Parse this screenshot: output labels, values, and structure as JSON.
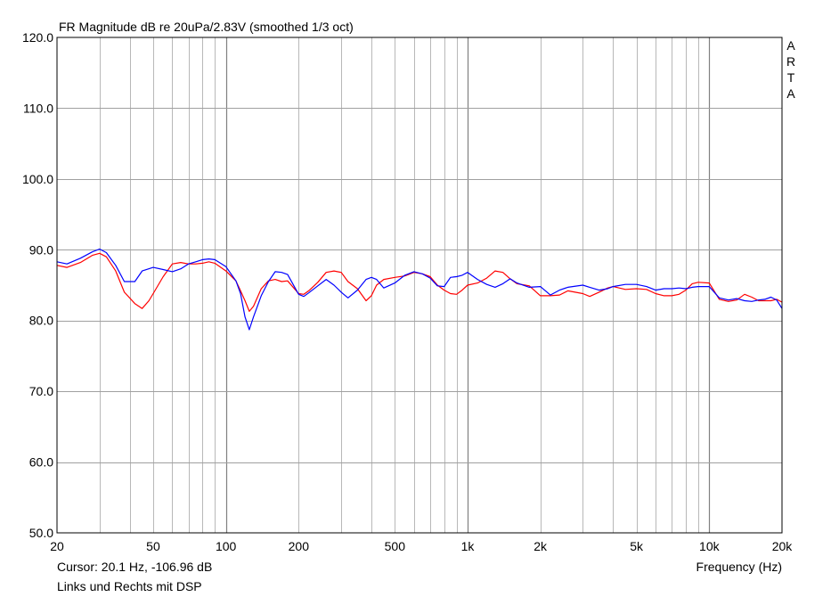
{
  "chart_data": {
    "type": "line",
    "title": "FR Magnitude dB re 20uPa/2.83V (smoothed 1/3 oct)",
    "xlabel": "Frequency (Hz)",
    "ylabel": "",
    "x_scale": "log",
    "xlim": [
      20,
      20000
    ],
    "ylim": [
      50,
      120
    ],
    "grid": true,
    "x_tick_values": [
      20,
      50,
      100,
      200,
      500,
      1000,
      2000,
      5000,
      10000,
      20000
    ],
    "x_tick_labels": [
      "20",
      "50",
      "100",
      "200",
      "500",
      "1k",
      "2k",
      "5k",
      "10k",
      "20k"
    ],
    "y_tick_values": [
      50,
      60,
      70,
      80,
      90,
      100,
      110,
      120
    ],
    "y_tick_labels": [
      "50.0",
      "60.0",
      "70.0",
      "80.0",
      "90.0",
      "100.0",
      "110.0",
      "120.0"
    ],
    "watermark": [
      "A",
      "R",
      "T",
      "A"
    ],
    "cursor_text": "Cursor: 20.1 Hz, -106.96 dB",
    "caption": "Links und Rechts mit DSP",
    "series": [
      {
        "color": "#0000ff",
        "x": [
          20,
          22,
          25,
          28,
          30,
          32,
          35,
          38,
          42,
          45,
          50,
          55,
          60,
          65,
          70,
          75,
          80,
          85,
          90,
          100,
          110,
          115,
          120,
          125,
          130,
          140,
          150,
          160,
          170,
          180,
          200,
          210,
          220,
          240,
          260,
          280,
          300,
          320,
          350,
          380,
          400,
          420,
          450,
          500,
          550,
          600,
          650,
          700,
          750,
          800,
          850,
          900,
          950,
          1000,
          1100,
          1200,
          1300,
          1400,
          1500,
          1600,
          1800,
          2000,
          2200,
          2400,
          2600,
          3000,
          3200,
          3500,
          3800,
          4000,
          4500,
          5000,
          5500,
          6000,
          6500,
          7000,
          7500,
          8000,
          8500,
          9000,
          10000,
          11000,
          12000,
          13000,
          14000,
          15000,
          16000,
          17000,
          18000,
          19000,
          20000
        ],
        "y": [
          88.3,
          88.0,
          88.8,
          89.7,
          90.1,
          89.6,
          87.8,
          85.5,
          85.5,
          87.0,
          87.5,
          87.2,
          86.9,
          87.3,
          88.0,
          88.3,
          88.6,
          88.7,
          88.6,
          87.6,
          85.6,
          83.8,
          80.5,
          78.7,
          80.5,
          83.5,
          85.5,
          86.9,
          86.8,
          86.5,
          83.7,
          83.4,
          83.9,
          84.9,
          85.8,
          85.0,
          84.0,
          83.2,
          84.3,
          85.8,
          86.1,
          85.8,
          84.6,
          85.3,
          86.4,
          86.9,
          86.6,
          86.0,
          84.9,
          84.8,
          86.1,
          86.2,
          86.4,
          86.8,
          85.8,
          85.1,
          84.7,
          85.2,
          85.9,
          85.3,
          84.7,
          84.8,
          83.6,
          84.3,
          84.7,
          85.0,
          84.7,
          84.3,
          84.5,
          84.8,
          85.1,
          85.1,
          84.8,
          84.3,
          84.5,
          84.5,
          84.6,
          84.5,
          84.7,
          84.8,
          84.8,
          83.2,
          82.9,
          83.1,
          82.8,
          82.7,
          82.9,
          83.0,
          83.3,
          82.9,
          81.7
        ]
      },
      {
        "color": "#ff0000",
        "x": [
          20,
          22,
          25,
          28,
          30,
          32,
          35,
          38,
          42,
          45,
          48,
          50,
          55,
          60,
          65,
          70,
          75,
          80,
          85,
          90,
          100,
          110,
          115,
          120,
          125,
          130,
          140,
          150,
          160,
          170,
          180,
          200,
          210,
          220,
          240,
          260,
          280,
          300,
          320,
          350,
          380,
          400,
          420,
          450,
          500,
          550,
          600,
          650,
          700,
          750,
          800,
          850,
          900,
          950,
          1000,
          1100,
          1200,
          1300,
          1400,
          1500,
          1600,
          1800,
          2000,
          2200,
          2400,
          2600,
          3000,
          3200,
          3500,
          3800,
          4000,
          4500,
          5000,
          5500,
          6000,
          6500,
          7000,
          7500,
          8000,
          8500,
          9000,
          10000,
          11000,
          12000,
          13000,
          14000,
          15000,
          16000,
          17000,
          18000,
          19000,
          20000
        ],
        "y": [
          87.8,
          87.5,
          88.2,
          89.2,
          89.5,
          89.0,
          87.0,
          84.0,
          82.4,
          81.7,
          82.8,
          83.8,
          86.2,
          88.0,
          88.2,
          88.0,
          88.0,
          88.1,
          88.3,
          88.1,
          87.0,
          85.6,
          84.2,
          82.8,
          81.3,
          82.0,
          84.5,
          85.6,
          85.8,
          85.5,
          85.6,
          83.8,
          83.7,
          84.2,
          85.4,
          86.8,
          87.0,
          86.8,
          85.5,
          84.5,
          82.8,
          83.5,
          85.0,
          85.8,
          86.1,
          86.3,
          86.8,
          86.6,
          86.2,
          85.0,
          84.3,
          83.8,
          83.7,
          84.3,
          85.0,
          85.3,
          86.0,
          87.0,
          86.8,
          85.9,
          85.2,
          84.9,
          83.5,
          83.5,
          83.6,
          84.2,
          83.8,
          83.4,
          84.0,
          84.6,
          84.8,
          84.4,
          84.5,
          84.4,
          83.8,
          83.5,
          83.5,
          83.7,
          84.3,
          85.2,
          85.4,
          85.3,
          83.0,
          82.7,
          82.9,
          83.7,
          83.3,
          82.8,
          82.8,
          82.8,
          83.0,
          82.6
        ]
      }
    ]
  }
}
